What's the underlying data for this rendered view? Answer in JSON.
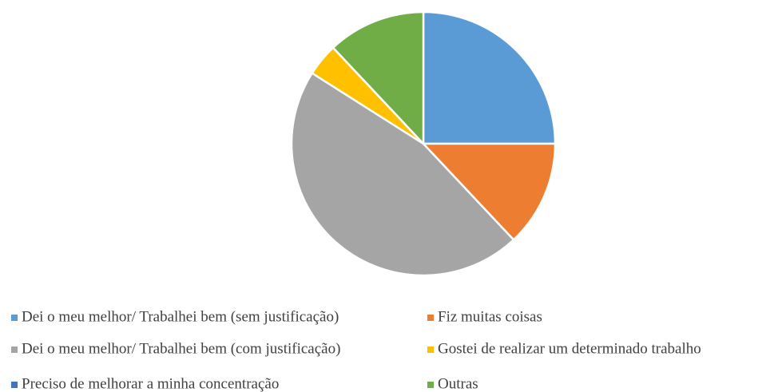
{
  "chart_data": {
    "type": "pie",
    "categories": [
      "Dei o meu melhor/ Trabalhei bem (sem justificação)",
      "Fiz muitas coisas",
      "Dei o meu melhor/ Trabalhei bem (com justificação)",
      "Gostei de realizar um determinado trabalho",
      "Preciso de melhorar a minha concentração",
      "Outras"
    ],
    "values": [
      25,
      13,
      46,
      4,
      0,
      12
    ],
    "colors": [
      "#5b9bd5",
      "#ed7d31",
      "#a5a5a5",
      "#ffc000",
      "#4472c4",
      "#70ad47"
    ],
    "legend": "bottom"
  }
}
